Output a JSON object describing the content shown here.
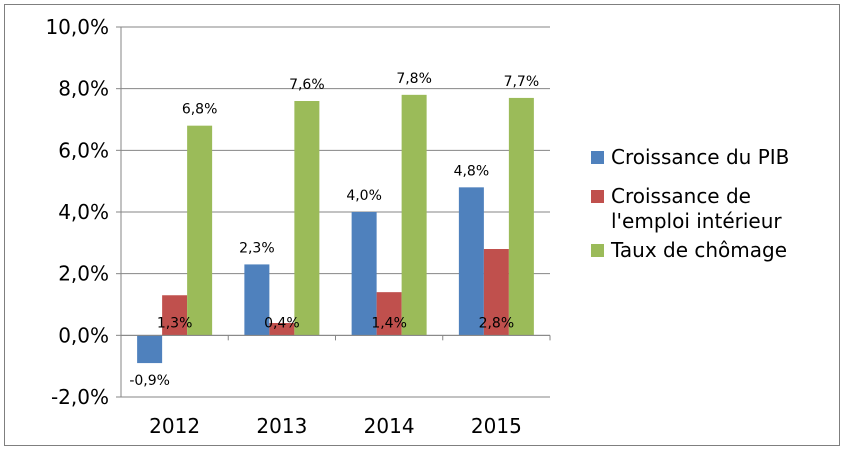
{
  "chart_data": {
    "type": "bar",
    "title": "",
    "xlabel": "",
    "ylabel": "",
    "categories": [
      "2012",
      "2013",
      "2014",
      "2015"
    ],
    "series": [
      {
        "name": "Croissance du PIB",
        "color": "#4f81bd",
        "values": [
          -0.9,
          2.3,
          4.0,
          4.8
        ],
        "labels": [
          "-0,9%",
          "2,3%",
          "4,0%",
          "4,8%"
        ]
      },
      {
        "name": "Croissance de l'emploi intérieur",
        "color": "#c0504d",
        "values": [
          1.3,
          0.4,
          1.4,
          2.8
        ],
        "labels": [
          "1,3%",
          "0,4%",
          "1,4%",
          "2,8%"
        ]
      },
      {
        "name": "Taux de chômage",
        "color": "#9bbb59",
        "values": [
          6.8,
          7.6,
          7.8,
          7.7
        ],
        "labels": [
          "6,8%",
          "7,6%",
          "7,8%",
          "7,7%"
        ]
      }
    ],
    "ylim": [
      -2.0,
      10.0
    ],
    "yticks": [
      -2.0,
      0.0,
      2.0,
      4.0,
      6.0,
      8.0,
      10.0
    ],
    "ytick_labels": [
      "-2,0%",
      "0,0%",
      "2,0%",
      "4,0%",
      "6,0%",
      "8,0%",
      "10,0%"
    ],
    "grid": "horizontal major gridlines",
    "legend_position": "right"
  },
  "legend": {
    "items": [
      {
        "lines": [
          "Croissance du PIB"
        ],
        "color": "#4f81bd"
      },
      {
        "lines": [
          "Croissance de",
          "l'emploi intérieur"
        ],
        "color": "#c0504d"
      },
      {
        "lines": [
          "Taux de chômage"
        ],
        "color": "#9bbb59"
      }
    ]
  }
}
